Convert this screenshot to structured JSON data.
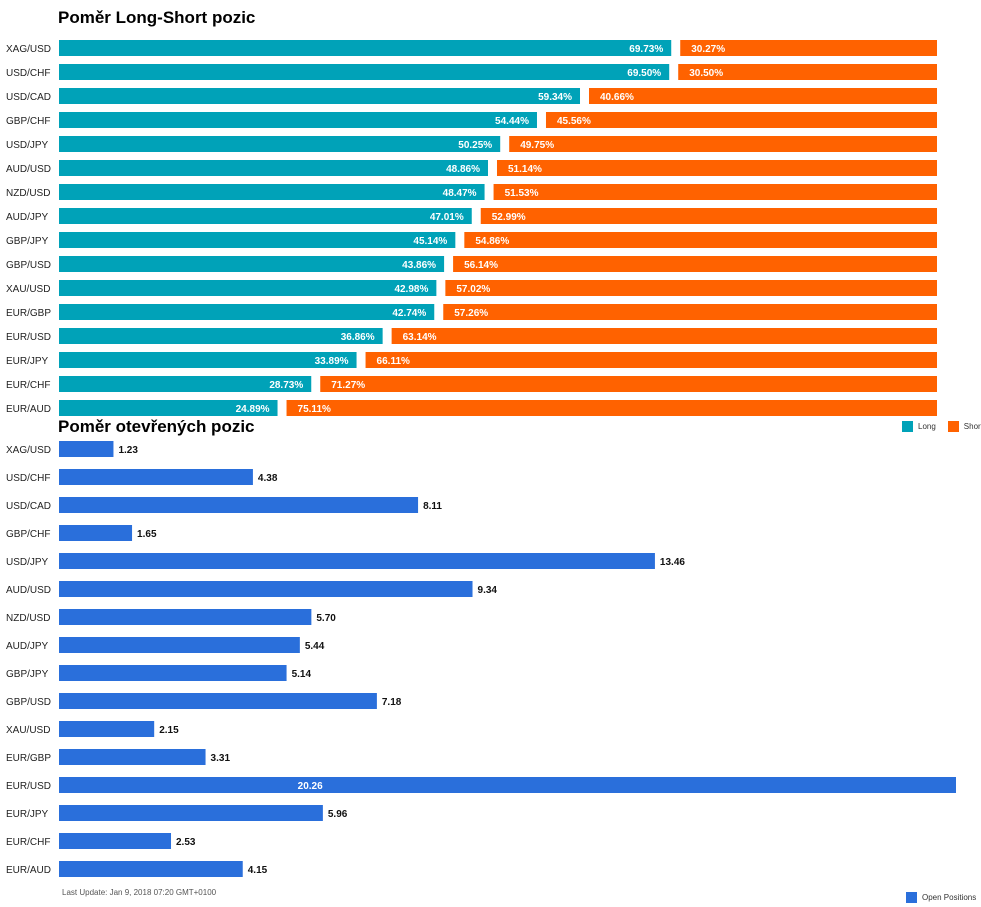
{
  "colors": {
    "long": "#00A2B8",
    "short": "#FF6200",
    "open": "#2A6FDB"
  },
  "footer": {
    "last_update": "Last Update: Jan 9, 2018 07:20 GMT+0100"
  },
  "chart_data": [
    {
      "type": "bar",
      "orientation": "horizontal",
      "stacked": true,
      "title": "Poměr Long-Short pozic",
      "categories": [
        "XAG/USD",
        "USD/CHF",
        "USD/CAD",
        "GBP/CHF",
        "USD/JPY",
        "AUD/USD",
        "NZD/USD",
        "AUD/JPY",
        "GBP/JPY",
        "GBP/USD",
        "XAU/USD",
        "EUR/GBP",
        "EUR/USD",
        "EUR/JPY",
        "EUR/CHF",
        "EUR/AUD"
      ],
      "series": [
        {
          "name": "Long",
          "values": [
            69.73,
            69.5,
            59.34,
            54.44,
            50.25,
            48.86,
            48.47,
            47.01,
            45.14,
            43.86,
            42.98,
            42.74,
            36.86,
            33.89,
            28.73,
            24.89
          ],
          "labels": [
            "69.73%",
            "69.50%",
            "59.34%",
            "54.44%",
            "50.25%",
            "48.86%",
            "48.47%",
            "47.01%",
            "45.14%",
            "43.86%",
            "42.98%",
            "42.74%",
            "36.86%",
            "33.89%",
            "28.73%",
            "24.89%"
          ]
        },
        {
          "name": "Short",
          "values": [
            30.27,
            30.5,
            40.66,
            45.56,
            49.75,
            51.14,
            51.53,
            52.99,
            54.86,
            56.14,
            57.02,
            57.26,
            63.14,
            66.11,
            71.27,
            75.11
          ],
          "labels": [
            "30.27%",
            "30.50%",
            "40.66%",
            "45.56%",
            "49.75%",
            "51.14%",
            "51.53%",
            "52.99%",
            "54.86%",
            "56.14%",
            "57.02%",
            "57.26%",
            "63.14%",
            "66.11%",
            "71.27%",
            "75.11%"
          ]
        }
      ],
      "legend": {
        "position": "right",
        "entries": [
          "Long",
          "Short"
        ]
      }
    },
    {
      "type": "bar",
      "orientation": "horizontal",
      "title": "Poměr otevřených pozic",
      "categories": [
        "XAG/USD",
        "USD/CHF",
        "USD/CAD",
        "GBP/CHF",
        "USD/JPY",
        "AUD/USD",
        "NZD/USD",
        "AUD/JPY",
        "GBP/JPY",
        "GBP/USD",
        "XAU/USD",
        "EUR/GBP",
        "EUR/USD",
        "EUR/JPY",
        "EUR/CHF",
        "EUR/AUD"
      ],
      "series": [
        {
          "name": "Open Positions",
          "values": [
            1.23,
            4.38,
            8.11,
            1.65,
            13.46,
            9.34,
            5.7,
            5.44,
            5.14,
            7.18,
            2.15,
            3.31,
            20.26,
            5.96,
            2.53,
            4.15
          ],
          "labels": [
            "1.23",
            "4.38",
            "8.11",
            "1.65",
            "13.46",
            "9.34",
            "5.70",
            "5.44",
            "5.14",
            "7.18",
            "2.15",
            "3.31",
            "20.26",
            "5.96",
            "2.53",
            "4.15"
          ]
        }
      ],
      "legend": {
        "position": "bottom-right",
        "entries": [
          "Open Positions"
        ]
      }
    }
  ]
}
